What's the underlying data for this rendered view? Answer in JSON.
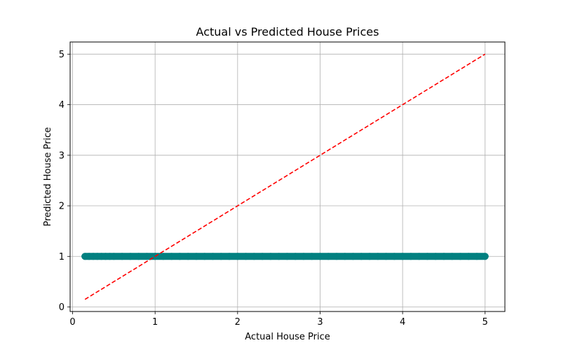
{
  "chart_data": {
    "type": "scatter",
    "title": "Actual vs Predicted House Prices",
    "xlabel": "Actual House Price",
    "ylabel": "Predicted House Price",
    "xlim": [
      -0.03,
      5.24
    ],
    "ylim": [
      -0.09,
      5.24
    ],
    "xticks": [
      0,
      1,
      2,
      3,
      4,
      5
    ],
    "yticks": [
      0,
      1,
      2,
      3,
      4,
      5
    ],
    "grid": true,
    "series": [
      {
        "kind": "scatter",
        "color": "#008080",
        "x_range": [
          0.15,
          5.0
        ],
        "y_value": 1.0,
        "x": [
          0.15,
          0.2,
          0.25,
          0.3,
          0.35,
          0.4,
          0.45,
          0.5,
          0.6,
          0.7,
          0.8,
          0.9,
          1.0,
          1.1,
          1.2,
          1.3,
          1.4,
          1.5,
          1.6,
          1.7,
          1.8,
          1.9,
          2.0,
          2.1,
          2.2,
          2.3,
          2.4,
          2.5,
          2.6,
          2.7,
          2.8,
          2.9,
          3.0,
          3.1,
          3.2,
          3.3,
          3.4,
          3.5,
          3.6,
          3.7,
          3.8,
          3.9,
          4.0,
          4.1,
          4.2,
          4.3,
          4.4,
          4.5,
          4.6,
          4.7,
          4.8,
          4.9,
          5.0
        ],
        "y": [
          1.0,
          1.0,
          1.0,
          1.0,
          1.0,
          1.0,
          1.0,
          1.0,
          1.0,
          1.0,
          1.0,
          1.0,
          1.0,
          1.0,
          1.0,
          1.0,
          1.0,
          1.0,
          1.0,
          1.0,
          1.0,
          1.0,
          1.0,
          1.0,
          1.0,
          1.0,
          1.0,
          1.0,
          1.0,
          1.0,
          1.0,
          1.0,
          1.0,
          1.0,
          1.0,
          1.0,
          1.0,
          1.0,
          1.0,
          1.0,
          1.0,
          1.0,
          1.0,
          1.0,
          1.0,
          1.0,
          1.0,
          1.0,
          1.0,
          1.0,
          1.0,
          1.0,
          1.0
        ]
      },
      {
        "kind": "line",
        "style": "dashed",
        "color": "#ff0000",
        "x": [
          0.15,
          5.0
        ],
        "y": [
          0.15,
          5.0
        ]
      }
    ]
  }
}
